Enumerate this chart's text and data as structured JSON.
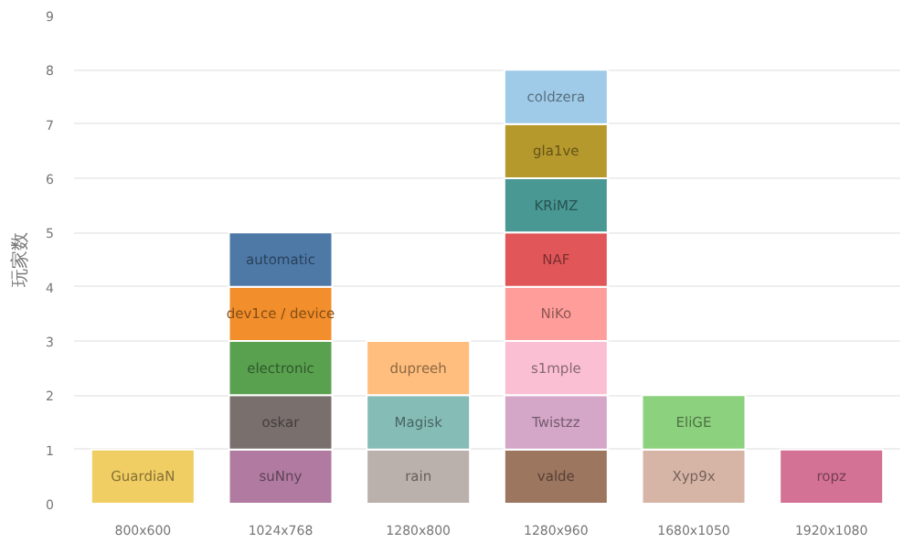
{
  "chart_data": {
    "type": "bar",
    "stacked": true,
    "ylabel": "玩家数",
    "categories": [
      "800x600",
      "1024x768",
      "1280x800",
      "1280x960",
      "1680x1050",
      "1920x1080"
    ],
    "ylim": [
      0,
      9
    ],
    "yticks": [
      0,
      1,
      2,
      3,
      4,
      5,
      6,
      7,
      8,
      9
    ],
    "grid": "y",
    "legend": false,
    "series": [
      {
        "name": "GuardiaN",
        "color": "#f1ce63",
        "values": [
          1,
          null,
          null,
          null,
          null,
          null
        ]
      },
      {
        "name": "suNny",
        "color": "#b07aa1",
        "values": [
          null,
          1,
          null,
          null,
          null,
          null
        ]
      },
      {
        "name": "oskar",
        "color": "#79706e",
        "values": [
          null,
          1,
          null,
          null,
          null,
          null
        ]
      },
      {
        "name": "electronic",
        "color": "#59a14f",
        "values": [
          null,
          1,
          null,
          null,
          null,
          null
        ]
      },
      {
        "name": "dev1ce / device",
        "color": "#f28e2b",
        "values": [
          null,
          1,
          null,
          null,
          null,
          null
        ]
      },
      {
        "name": "automatic",
        "color": "#4e79a7",
        "values": [
          null,
          1,
          null,
          null,
          null,
          null
        ]
      },
      {
        "name": "rain",
        "color": "#bab0ac",
        "values": [
          null,
          null,
          1,
          null,
          null,
          null
        ]
      },
      {
        "name": "Magisk",
        "color": "#86bcb6",
        "values": [
          null,
          null,
          1,
          null,
          null,
          null
        ]
      },
      {
        "name": "dupreeh",
        "color": "#ffbe7d",
        "values": [
          null,
          null,
          1,
          null,
          null,
          null
        ]
      },
      {
        "name": "valde",
        "color": "#9d7660",
        "values": [
          null,
          null,
          null,
          1,
          null,
          null
        ]
      },
      {
        "name": "Twistzz",
        "color": "#d4a6c8",
        "values": [
          null,
          null,
          null,
          1,
          null,
          null
        ]
      },
      {
        "name": "s1mple",
        "color": "#fabfd2",
        "values": [
          null,
          null,
          null,
          1,
          null,
          null
        ]
      },
      {
        "name": "NiKo",
        "color": "#ff9d9a",
        "values": [
          null,
          null,
          null,
          1,
          null,
          null
        ]
      },
      {
        "name": "NAF",
        "color": "#e15759",
        "values": [
          null,
          null,
          null,
          1,
          null,
          null
        ]
      },
      {
        "name": "KRiMZ",
        "color": "#499894",
        "values": [
          null,
          null,
          null,
          1,
          null,
          null
        ]
      },
      {
        "name": "gla1ve",
        "color": "#b6992d",
        "values": [
          null,
          null,
          null,
          1,
          null,
          null
        ]
      },
      {
        "name": "coldzera",
        "color": "#a0cbe8",
        "values": [
          null,
          null,
          null,
          1,
          null,
          null
        ]
      },
      {
        "name": "Xyp9x",
        "color": "#d7b5a6",
        "values": [
          null,
          null,
          null,
          null,
          1,
          null
        ]
      },
      {
        "name": "EliGE",
        "color": "#8cd17d",
        "values": [
          null,
          null,
          null,
          null,
          1,
          null
        ]
      },
      {
        "name": "ropz",
        "color": "#d37295",
        "values": [
          null,
          null,
          null,
          null,
          null,
          1
        ]
      }
    ]
  }
}
